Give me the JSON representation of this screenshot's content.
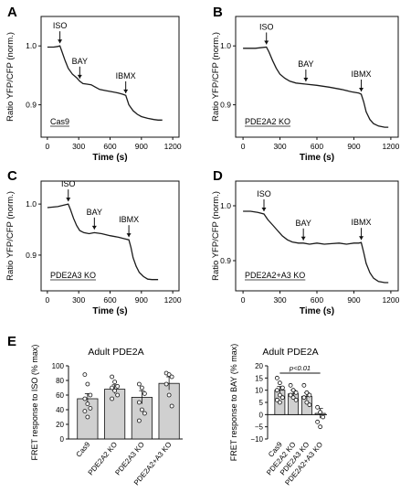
{
  "colors": {
    "trace": "#1a1a1a",
    "bar_fill": "#d0d0d0",
    "axis": "#111111"
  },
  "chart_data": [
    {
      "type": "line",
      "panel_label": "A",
      "ylabel": "Ratio YFP/CFP (norm.)",
      "xlabel": "Time (s)",
      "xlim": [
        -60,
        1260
      ],
      "ylim": [
        0.845,
        1.05
      ],
      "x_ticks": [
        "0",
        "300",
        "600",
        "900",
        "1200"
      ],
      "x_tick_values": [
        0,
        300,
        600,
        900,
        1200
      ],
      "y_ticks": [
        "0.9",
        "1.0"
      ],
      "y_tick_values": [
        0.9,
        1.0
      ],
      "box_label": "Cas9",
      "annotations": [
        {
          "text": "ISO",
          "x": 120,
          "y": 1.0
        },
        {
          "text": "BAY",
          "x": 310,
          "y": 0.94
        },
        {
          "text": "IBMX",
          "x": 750,
          "y": 0.915
        }
      ],
      "series": [
        {
          "x": [
            0,
            60,
            100,
            120,
            140,
            170,
            200,
            240,
            280,
            310,
            340,
            380,
            420,
            460,
            500,
            560,
            620,
            680,
            720,
            750,
            780,
            820,
            860,
            900,
            960,
            1020,
            1060,
            1100
          ],
          "values": [
            0.998,
            0.998,
            0.999,
            1.0,
            0.99,
            0.975,
            0.962,
            0.952,
            0.946,
            0.94,
            0.936,
            0.935,
            0.934,
            0.93,
            0.926,
            0.924,
            0.922,
            0.92,
            0.918,
            0.916,
            0.9,
            0.89,
            0.884,
            0.88,
            0.877,
            0.875,
            0.874,
            0.874
          ]
        }
      ]
    },
    {
      "type": "line",
      "panel_label": "B",
      "ylabel": "Ratio YFP/CFP (norm.)",
      "xlabel": "Time (s)",
      "xlim": [
        -60,
        1260
      ],
      "ylim": [
        0.845,
        1.05
      ],
      "x_ticks": [
        "0",
        "300",
        "600",
        "900",
        "1200"
      ],
      "x_tick_values": [
        0,
        300,
        600,
        900,
        1200
      ],
      "y_ticks": [
        "0.9",
        "1.0"
      ],
      "y_tick_values": [
        0.9,
        1.0
      ],
      "box_label": "PDE2A2 KO",
      "annotations": [
        {
          "text": "ISO",
          "x": 190,
          "y": 0.998
        },
        {
          "text": "BAY",
          "x": 510,
          "y": 0.935
        },
        {
          "text": "IBMX",
          "x": 960,
          "y": 0.918
        }
      ],
      "series": [
        {
          "x": [
            0,
            100,
            190,
            210,
            240,
            270,
            300,
            340,
            380,
            430,
            510,
            600,
            700,
            800,
            880,
            940,
            960,
            980,
            1000,
            1030,
            1060,
            1100,
            1150,
            1180
          ],
          "values": [
            0.996,
            0.996,
            0.998,
            0.99,
            0.975,
            0.962,
            0.952,
            0.945,
            0.94,
            0.937,
            0.935,
            0.933,
            0.93,
            0.926,
            0.922,
            0.92,
            0.918,
            0.905,
            0.888,
            0.875,
            0.868,
            0.864,
            0.862,
            0.862
          ]
        }
      ]
    },
    {
      "type": "line",
      "panel_label": "C",
      "ylabel": "Ratio YFP/CFP (norm.)",
      "xlabel": "Time (s)",
      "xlim": [
        -60,
        1260
      ],
      "ylim": [
        0.83,
        1.045
      ],
      "x_ticks": [
        "0",
        "300",
        "600",
        "900",
        "1200"
      ],
      "x_tick_values": [
        0,
        300,
        600,
        900,
        1200
      ],
      "y_ticks": [
        "0.9",
        "1.0"
      ],
      "y_tick_values": [
        0.9,
        1.0
      ],
      "box_label": "PDE2A3 KO",
      "annotations": [
        {
          "text": "ISO",
          "x": 200,
          "y": 1.0
        },
        {
          "text": "BAY",
          "x": 450,
          "y": 0.945
        },
        {
          "text": "IBMX",
          "x": 780,
          "y": 0.93
        }
      ],
      "series": [
        {
          "x": [
            0,
            100,
            200,
            220,
            250,
            280,
            310,
            350,
            400,
            450,
            520,
            600,
            680,
            740,
            780,
            800,
            820,
            850,
            880,
            920,
            960,
            1000,
            1040,
            1060
          ],
          "values": [
            0.993,
            0.995,
            1.0,
            0.99,
            0.972,
            0.958,
            0.948,
            0.944,
            0.942,
            0.944,
            0.942,
            0.938,
            0.935,
            0.932,
            0.93,
            0.915,
            0.895,
            0.878,
            0.866,
            0.858,
            0.853,
            0.852,
            0.852,
            0.852
          ]
        }
      ]
    },
    {
      "type": "line",
      "panel_label": "D",
      "ylabel": "Ratio YFP/CFP (norm.)",
      "xlabel": "Time (s)",
      "xlim": [
        -60,
        1260
      ],
      "ylim": [
        0.845,
        1.045
      ],
      "x_ticks": [
        "0",
        "300",
        "600",
        "900",
        "1200"
      ],
      "x_tick_values": [
        0,
        300,
        600,
        900,
        1200
      ],
      "y_ticks": [
        "0.9",
        "1.0"
      ],
      "y_tick_values": [
        0.9,
        1.0
      ],
      "box_label": "PDE2A2+A3 KO",
      "annotations": [
        {
          "text": "ISO",
          "x": 170,
          "y": 0.985
        },
        {
          "text": "BAY",
          "x": 490,
          "y": 0.932
        },
        {
          "text": "IBMX",
          "x": 960,
          "y": 0.933
        }
      ],
      "series": [
        {
          "x": [
            0,
            60,
            120,
            170,
            200,
            240,
            280,
            320,
            360,
            400,
            450,
            490,
            540,
            600,
            660,
            720,
            780,
            840,
            900,
            940,
            960,
            980,
            1000,
            1030,
            1060,
            1100,
            1150,
            1180
          ],
          "values": [
            0.99,
            0.99,
            0.988,
            0.985,
            0.975,
            0.965,
            0.955,
            0.945,
            0.938,
            0.934,
            0.932,
            0.932,
            0.93,
            0.932,
            0.93,
            0.931,
            0.932,
            0.93,
            0.932,
            0.932,
            0.933,
            0.915,
            0.895,
            0.878,
            0.868,
            0.862,
            0.86,
            0.86
          ]
        }
      ]
    },
    {
      "type": "bar",
      "panel_label": "E",
      "title": "Adult PDE2A",
      "ylabel": "FRET response to ISO (% max)",
      "categories": [
        "Cas9",
        "PDE2A2 KO",
        "PDE2A3 KO",
        "PDE2A2+A3 KO"
      ],
      "values": [
        55,
        68,
        57,
        76
      ],
      "errors": [
        7,
        6,
        9,
        9
      ],
      "points": [
        [
          88,
          75,
          60,
          55,
          48,
          42,
          38,
          30
        ],
        [
          85,
          78,
          72,
          70,
          66,
          60,
          55
        ],
        [
          75,
          70,
          62,
          50,
          40,
          35,
          25
        ],
        [
          90,
          88,
          85,
          75,
          60,
          45
        ]
      ],
      "ylim": [
        0,
        100
      ],
      "y_ticks": [
        "0",
        "20",
        "40",
        "60",
        "80",
        "100"
      ],
      "y_tick_values": [
        0,
        20,
        40,
        60,
        80,
        100
      ]
    },
    {
      "type": "bar",
      "title": "Adult PDE2A",
      "ylabel": "FRET response to BAY (% max)",
      "categories": [
        "Cas9",
        "PDE2A2 KO",
        "PDE2A3 KO",
        "PDE2A2+A3 KO"
      ],
      "values": [
        10,
        8.5,
        7.5,
        0.5
      ],
      "errors": [
        1.5,
        1.5,
        1.5,
        2
      ],
      "points": [
        [
          15,
          13,
          11,
          10,
          8,
          7,
          6,
          5
        ],
        [
          12,
          10,
          9,
          8,
          7,
          6
        ],
        [
          12,
          9,
          8,
          7,
          5,
          4
        ],
        [
          3,
          1,
          -1,
          -3,
          -5
        ]
      ],
      "ylim": [
        -10,
        20
      ],
      "y_ticks": [
        "−10",
        "−5",
        "0",
        "5",
        "10",
        "15",
        "20"
      ],
      "y_tick_values": [
        -10,
        -5,
        0,
        5,
        10,
        15,
        20
      ],
      "significance": {
        "text": "p<0.01",
        "from": 0,
        "to": 3,
        "y": 17
      }
    }
  ]
}
